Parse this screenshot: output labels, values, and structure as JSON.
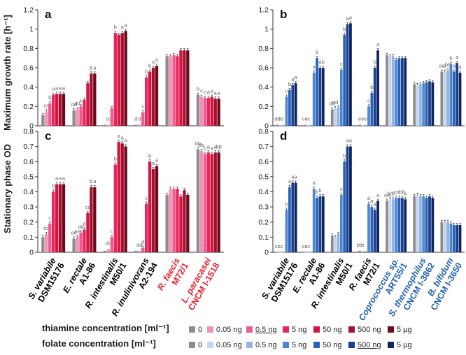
{
  "y_axis": {
    "top_title": "Maximum growth rate [h⁻¹]",
    "bottom_title": "Stationary phase OD"
  },
  "strains": {
    "left": [
      {
        "name": "S. variabile",
        "id": "DSM15176",
        "color": "#000000"
      },
      {
        "name": "E. rectale",
        "id": "A1-86",
        "color": "#000000"
      },
      {
        "name": "R. intestinalis",
        "id": "M50/1",
        "color": "#000000"
      },
      {
        "name": "R. inulinivorans",
        "id": "A2-194",
        "color": "#000000"
      },
      {
        "name": "R. faecis",
        "id": "M72/1",
        "color": "#e8202a"
      },
      {
        "name": "L. paracasei",
        "id": "CNCM I-1518",
        "color": "#e8202a"
      }
    ],
    "right": [
      {
        "name": "S. variabile",
        "id": "DSM15176",
        "color": "#000000"
      },
      {
        "name": "E. rectale",
        "id": "A1-86",
        "color": "#000000"
      },
      {
        "name": "R. intestinalis",
        "id": "M50/1",
        "color": "#000000"
      },
      {
        "name": "R. faecis",
        "id": "M72/1",
        "color": "#000000"
      },
      {
        "name": "Coprococcus sp.",
        "id": "ART55/1",
        "color": "#1f5fae"
      },
      {
        "name": "S. thermophilus",
        "id": "CNCM I-3862",
        "color": "#1f5fae"
      },
      {
        "name": "B. bifidum",
        "id": "CNCM I-3650",
        "color": "#1f5fae"
      }
    ]
  },
  "legend": {
    "thiamine": {
      "title": "thiamine concentration [ml⁻¹]",
      "items": [
        "0",
        "0.05 ng",
        "0.5 ng",
        "5 ng",
        "50 ng",
        "500 ng",
        "5 µg"
      ],
      "colors": [
        "#8c8c8c",
        "#f490b8",
        "#f15a8e",
        "#e8265a",
        "#d31544",
        "#a6102d",
        "#6d0a1c"
      ],
      "underlined_index": 2
    },
    "folate": {
      "title": "folate concentration [ml⁻¹]",
      "items": [
        "0",
        "0.05 ng",
        "0.5 ng",
        "5 ng",
        "50 ng",
        "500 ng",
        "5 µg"
      ],
      "colors": [
        "#8c8c8c",
        "#c3d4ee",
        "#94b3e0",
        "#4f86cc",
        "#2864b5",
        "#1a3f91",
        "#0f2560"
      ],
      "underlined_index": 5
    }
  },
  "chart_data": [
    {
      "panel": "a",
      "type": "bar",
      "metric": "Maximum growth rate",
      "ylim": [
        0,
        1.2
      ],
      "yticks": [
        "0",
        "0.2",
        "0.4",
        "0.6",
        "0.8",
        "1",
        "1.2"
      ],
      "categories": [
        "S. variabile DSM15176",
        "E. rectale A1-86",
        "R. intestinalis M50/1",
        "R. inulinivorans A2-194",
        "R. faecis M72/1",
        "L. paracasei CNCM I-1518"
      ],
      "series": [
        {
          "name": "0",
          "values": [
            0.11,
            0.16,
            0.01,
            0.01,
            0.72,
            0.32
          ]
        },
        {
          "name": "0.05 ng",
          "values": [
            0.15,
            0.17,
            0.01,
            0.01,
            0.72,
            0.3
          ]
        },
        {
          "name": "0.5 ng",
          "values": [
            0.23,
            0.2,
            0.18,
            0.14,
            0.73,
            0.29
          ]
        },
        {
          "name": "5 ng",
          "values": [
            0.32,
            0.27,
            0.96,
            0.5,
            0.72,
            0.29
          ]
        },
        {
          "name": "50 ng",
          "values": [
            0.33,
            0.44,
            0.94,
            0.56,
            0.78,
            0.3
          ]
        },
        {
          "name": "500 ng",
          "values": [
            0.33,
            0.54,
            0.96,
            0.6,
            0.78,
            0.28
          ]
        },
        {
          "name": "5 µg",
          "values": [
            0.33,
            0.54,
            0.98,
            0.62,
            0.78,
            0.28
          ]
        }
      ],
      "letters": [
        [
          "",
          "cc",
          "b",
          "a",
          "a",
          "a",
          "a"
        ],
        [
          "dd",
          "dd",
          "c",
          "",
          "",
          "b",
          "a"
        ],
        [
          "",
          "cc",
          "",
          "b",
          "",
          "a",
          "a"
        ],
        [
          "d",
          "d",
          "c",
          "b",
          "b",
          "a",
          "a"
        ],
        [
          "",
          "",
          "",
          "",
          "",
          "",
          ""
        ],
        [
          "b",
          "c",
          "c",
          "a",
          "a",
          "a",
          "a"
        ]
      ]
    },
    {
      "panel": "b",
      "type": "bar",
      "metric": "Maximum growth rate",
      "ylim": [
        0,
        1.2
      ],
      "yticks": [
        "0",
        "0.2",
        "0.4",
        "0.6",
        "0.8",
        "1",
        "1.2"
      ],
      "categories": [
        "S. variabile DSM15176",
        "E. rectale A1-86",
        "R. intestinalis M50/1",
        "R. faecis M72/1",
        "Coprococcus sp. ART55/1",
        "S. thermophilus CNCM I-3862",
        "B. bifidum CNCM I-3650"
      ],
      "series": [
        {
          "name": "0",
          "values": [
            0.01,
            0.01,
            0.17,
            0.01,
            0.73,
            0.43,
            0.56
          ]
        },
        {
          "name": "0.05 ng",
          "values": [
            0.01,
            0.01,
            0.18,
            0.01,
            0.72,
            0.42,
            0.56
          ]
        },
        {
          "name": "0.5 ng",
          "values": [
            0.01,
            0.01,
            0.19,
            0.01,
            0.72,
            0.43,
            0.57
          ]
        },
        {
          "name": "5 ng",
          "values": [
            0.3,
            0.55,
            0.58,
            0.2,
            0.68,
            0.44,
            0.64
          ]
        },
        {
          "name": "50 ng",
          "values": [
            0.37,
            0.7,
            0.94,
            0.34,
            0.7,
            0.45,
            0.56
          ]
        },
        {
          "name": "500 ng",
          "values": [
            0.42,
            0.6,
            1.05,
            0.6,
            0.7,
            0.46,
            0.65
          ]
        },
        {
          "name": "5 µg",
          "values": [
            0.44,
            0.6,
            1.06,
            0.78,
            0.7,
            0.45,
            0.55
          ]
        }
      ],
      "letters": [
        [
          "dd",
          "dd",
          "",
          "c",
          "b",
          "a",
          "a"
        ],
        [
          "cc",
          "cc",
          "",
          "a",
          "b",
          "a",
          "b"
        ],
        [
          "dd",
          "dd",
          "",
          "c",
          "b",
          "a",
          "a"
        ],
        [
          "e",
          "e",
          "e",
          "c",
          "b",
          "b",
          "a"
        ],
        [
          "",
          "",
          "",
          "",
          "",
          "",
          ""
        ],
        [
          "",
          "",
          "",
          "",
          "",
          "",
          ""
        ],
        [
          "aa",
          "a",
          "bb",
          "b",
          "a",
          "a",
          "a"
        ]
      ]
    },
    {
      "panel": "c",
      "type": "bar",
      "metric": "Stationary phase OD",
      "ylim": [
        0,
        0.8
      ],
      "yticks": [
        "0",
        "0.1",
        "0.2",
        "0.3",
        "0.4",
        "0.5",
        "0.6",
        "0.7",
        "0.8"
      ],
      "categories": [
        "S. variabile DSM15176",
        "E. rectale A1-86",
        "R. intestinalis M50/1",
        "R. inulinivorans A2-194",
        "R. faecis M72/1",
        "L. paracasei CNCM I-1518"
      ],
      "series": [
        {
          "name": "0",
          "values": [
            0.1,
            0.09,
            0.01,
            0.01,
            0.38,
            0.68
          ]
        },
        {
          "name": "0.05 ng",
          "values": [
            0.12,
            0.1,
            0.02,
            0.01,
            0.42,
            0.67
          ]
        },
        {
          "name": "0.5 ng",
          "values": [
            0.19,
            0.13,
            0.1,
            0.03,
            0.42,
            0.65
          ]
        },
        {
          "name": "5 ng",
          "values": [
            0.4,
            0.15,
            0.58,
            0.32,
            0.42,
            0.66
          ]
        },
        {
          "name": "50 ng",
          "values": [
            0.45,
            0.26,
            0.73,
            0.6,
            0.37,
            0.65
          ]
        },
        {
          "name": "500 ng",
          "values": [
            0.45,
            0.43,
            0.72,
            0.55,
            0.41,
            0.66
          ]
        },
        {
          "name": "5 µg",
          "values": [
            0.45,
            0.43,
            0.7,
            0.57,
            0.38,
            0.66
          ]
        }
      ],
      "letters": [
        [
          "",
          "dd",
          "c",
          "b",
          "a",
          "a",
          "a"
        ],
        [
          "ee",
          "ee",
          "dd",
          "d",
          "cc",
          "b",
          "a"
        ],
        [
          "",
          "dd",
          "c",
          "b",
          "a",
          "a",
          "a"
        ],
        [
          "",
          "dd",
          "d",
          "c",
          "b",
          "a",
          "a"
        ],
        [
          "",
          "",
          "",
          "",
          "",
          "",
          ""
        ],
        [
          "bb",
          "bb",
          "b",
          "a",
          "a",
          "a",
          "bb"
        ]
      ]
    },
    {
      "panel": "d",
      "type": "bar",
      "metric": "Stationary phase OD",
      "ylim": [
        0,
        0.8
      ],
      "yticks": [
        "0",
        "0.1",
        "0.2",
        "0.3",
        "0.4",
        "0.5",
        "0.6",
        "0.7",
        "0.8"
      ],
      "categories": [
        "S. variabile DSM15176",
        "E. rectale A1-86",
        "R. intestinalis M50/1",
        "R. faecis M72/1",
        "Coprococcus sp. ART55/1",
        "S. thermophilus CNCM I-3862",
        "B. bifidum CNCM I-3650"
      ],
      "series": [
        {
          "name": "0",
          "values": [
            0.0,
            0.0,
            0.11,
            0.01,
            0.34,
            0.37,
            0.2
          ]
        },
        {
          "name": "0.05 ng",
          "values": [
            0.0,
            0.0,
            0.1,
            0.01,
            0.35,
            0.38,
            0.2
          ]
        },
        {
          "name": "0.5 ng",
          "values": [
            0.0,
            0.0,
            0.12,
            0.01,
            0.35,
            0.37,
            0.2
          ]
        },
        {
          "name": "5 ng",
          "values": [
            0.28,
            0.42,
            0.38,
            0.32,
            0.36,
            0.37,
            0.19
          ]
        },
        {
          "name": "50 ng",
          "values": [
            0.43,
            0.36,
            0.6,
            0.3,
            0.36,
            0.36,
            0.18
          ]
        },
        {
          "name": "500 ng",
          "values": [
            0.46,
            0.37,
            0.7,
            0.28,
            0.36,
            0.37,
            0.18
          ]
        },
        {
          "name": "5 µg",
          "values": [
            0.46,
            0.37,
            0.7,
            0.34,
            0.35,
            0.36,
            0.18
          ]
        }
      ],
      "letters": [
        [
          "cc",
          "cc",
          "",
          "b",
          "a",
          "a",
          "a"
        ],
        [
          "cc",
          "cc",
          "",
          "a",
          "b",
          "b",
          ""
        ],
        [
          "",
          "",
          "",
          "c",
          "b",
          "a",
          "a"
        ],
        [
          "bb",
          "b",
          "",
          "a",
          "a",
          "a",
          "a"
        ],
        [
          "aa",
          "bb",
          "b",
          "cc",
          "c",
          "bb",
          "a"
        ],
        [
          "",
          "",
          "",
          "",
          "",
          "",
          ""
        ],
        [
          "",
          "",
          "",
          "",
          "",
          "",
          ""
        ]
      ]
    }
  ]
}
